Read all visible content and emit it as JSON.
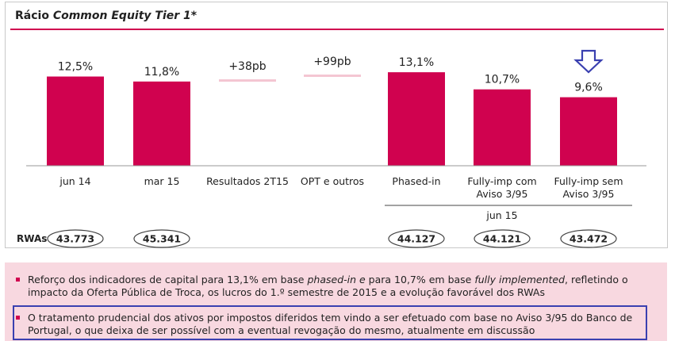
{
  "chart_data": {
    "type": "bar",
    "title_prefix": "Rácio ",
    "title_italic": "Common Equity Tier 1",
    "title_suffix": "*",
    "categories": [
      {
        "label": [
          "jun 14"
        ],
        "value": 12.5,
        "label_text": "12,5%",
        "kind": "bar",
        "rwa": "43.773"
      },
      {
        "label": [
          "mar 15"
        ],
        "value": 11.8,
        "label_text": "11,8%",
        "kind": "bar",
        "rwa": "45.341"
      },
      {
        "label": [
          "Resultados 2T15"
        ],
        "value": 0.38,
        "label_text": "+38pb",
        "kind": "delta",
        "rwa": ""
      },
      {
        "label": [
          "OPT e outros"
        ],
        "value": 0.99,
        "label_text": "+99pb",
        "kind": "delta",
        "rwa": ""
      },
      {
        "label": [
          "Phased-in"
        ],
        "value": 13.1,
        "label_text": "13,1%",
        "kind": "bar",
        "rwa": "44.127"
      },
      {
        "label": [
          "Fully-imp com",
          "Aviso 3/95"
        ],
        "value": 10.7,
        "label_text": "10,7%",
        "kind": "bar",
        "rwa": "44.121"
      },
      {
        "label": [
          "Fully-imp sem",
          "Aviso 3/95"
        ],
        "value": 9.6,
        "label_text": "9,6%",
        "kind": "bar",
        "rwa": "43.472"
      }
    ],
    "group_label": "jun 15",
    "rwa_label": "RWAs",
    "bar_color": "#d0024f",
    "delta_color": "#f4c6d2",
    "arrow_color": "#3a40b0",
    "highlight_category": "Fully-imp sem Aviso 3/95"
  },
  "notes": {
    "bullet1": {
      "part1": "Reforço dos indicadores de capital para 13,1% em base ",
      "italic1": "phased-in e",
      "part2": " para 10,7% em base ",
      "italic2": "fully implemented",
      "part3": ", refletindo o impacto da Oferta Pública de Troca, os lucros do 1.º semestre de 2015 e a evolução favorável dos RWAs"
    },
    "bullet2": "O tratamento prudencial dos ativos por impostos diferidos tem vindo a ser efetuado com base no Aviso 3/95 do Banco de Portugal, o que deixa de ser possível com a eventual revogação do mesmo, atualmente em discussão"
  }
}
